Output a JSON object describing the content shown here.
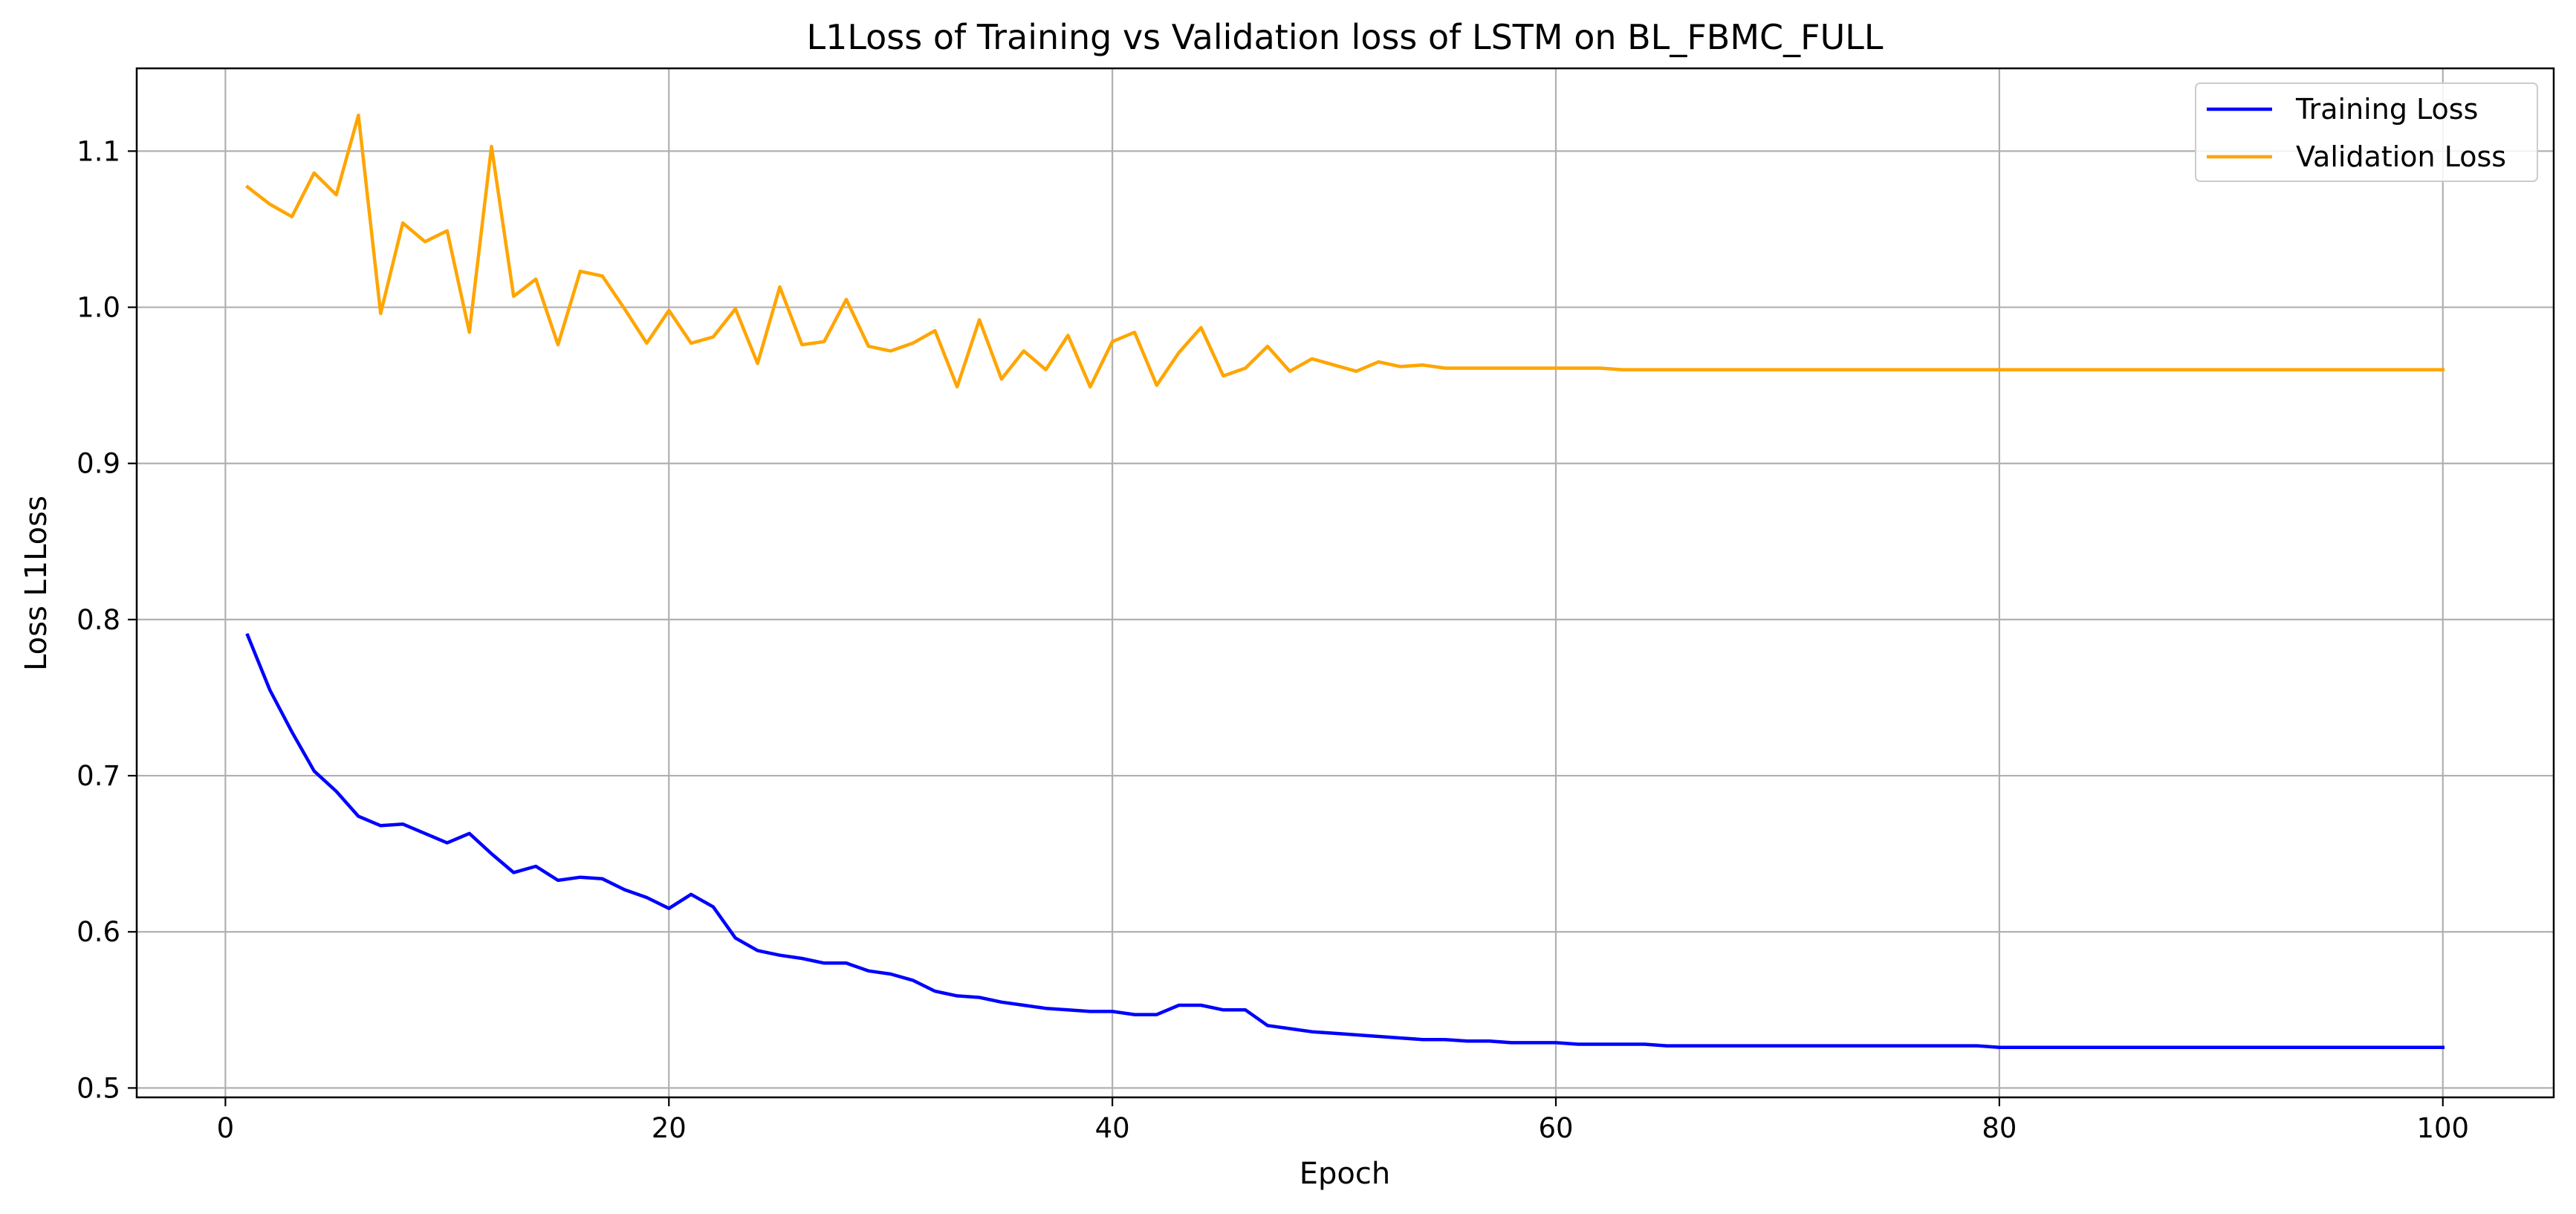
{
  "chart_data": {
    "type": "line",
    "title": "L1Loss of Training vs Validation loss of LSTM on BL_FBMC_FULL",
    "xlabel": "Epoch",
    "ylabel": "Loss L1Loss",
    "xlim": [
      -4,
      105
    ],
    "ylim": [
      0.494,
      1.153
    ],
    "xticks": [
      0,
      20,
      40,
      60,
      80,
      100
    ],
    "yticks": [
      0.5,
      0.6,
      0.7,
      0.8,
      0.9,
      1.0,
      1.1
    ],
    "xtick_labels": [
      "0",
      "20",
      "40",
      "60",
      "80",
      "100"
    ],
    "ytick_labels": [
      "0.5",
      "0.6",
      "0.7",
      "0.8",
      "0.9",
      "1.0",
      "1.1"
    ],
    "grid": true,
    "legend_position": "top-right",
    "x": [
      1,
      2,
      3,
      4,
      5,
      6,
      7,
      8,
      9,
      10,
      11,
      12,
      13,
      14,
      15,
      16,
      17,
      18,
      19,
      20,
      21,
      22,
      23,
      24,
      25,
      26,
      27,
      28,
      29,
      30,
      31,
      32,
      33,
      34,
      35,
      36,
      37,
      38,
      39,
      40,
      41,
      42,
      43,
      44,
      45,
      46,
      47,
      48,
      49,
      50,
      51,
      52,
      53,
      54,
      55,
      56,
      57,
      58,
      59,
      60,
      61,
      62,
      63,
      64,
      65,
      66,
      67,
      68,
      69,
      70,
      71,
      72,
      73,
      74,
      75,
      76,
      77,
      78,
      79,
      80,
      81,
      82,
      83,
      84,
      85,
      86,
      87,
      88,
      89,
      90,
      91,
      92,
      93,
      94,
      95,
      96,
      97,
      98,
      99,
      100
    ],
    "series": [
      {
        "name": "Training Loss",
        "color": "#0000ff",
        "values": [
          0.79,
          0.755,
          0.728,
          0.703,
          0.69,
          0.674,
          0.668,
          0.669,
          0.663,
          0.657,
          0.663,
          0.65,
          0.638,
          0.642,
          0.633,
          0.635,
          0.634,
          0.627,
          0.622,
          0.615,
          0.624,
          0.616,
          0.596,
          0.588,
          0.585,
          0.583,
          0.58,
          0.58,
          0.575,
          0.573,
          0.569,
          0.562,
          0.559,
          0.558,
          0.555,
          0.553,
          0.551,
          0.55,
          0.549,
          0.549,
          0.547,
          0.547,
          0.553,
          0.553,
          0.55,
          0.55,
          0.54,
          0.538,
          0.536,
          0.535,
          0.534,
          0.533,
          0.532,
          0.531,
          0.531,
          0.53,
          0.53,
          0.529,
          0.529,
          0.529,
          0.528,
          0.528,
          0.528,
          0.528,
          0.527,
          0.527,
          0.527,
          0.527,
          0.527,
          0.527,
          0.527,
          0.527,
          0.527,
          0.527,
          0.527,
          0.527,
          0.527,
          0.527,
          0.527,
          0.526,
          0.526,
          0.526,
          0.526,
          0.526,
          0.526,
          0.526,
          0.526,
          0.526,
          0.526,
          0.526,
          0.526,
          0.526,
          0.526,
          0.526,
          0.526,
          0.526,
          0.526,
          0.526,
          0.526,
          0.526
        ]
      },
      {
        "name": "Validation Loss",
        "color": "#ffa500",
        "values": [
          1.077,
          1.066,
          1.058,
          1.086,
          1.072,
          1.123,
          0.996,
          1.054,
          1.042,
          1.049,
          0.984,
          1.103,
          1.007,
          1.018,
          0.976,
          1.023,
          1.02,
          0.999,
          0.977,
          0.998,
          0.977,
          0.981,
          0.999,
          0.964,
          1.013,
          0.976,
          0.978,
          1.005,
          0.975,
          0.972,
          0.977,
          0.985,
          0.949,
          0.992,
          0.954,
          0.972,
          0.96,
          0.982,
          0.949,
          0.978,
          0.984,
          0.95,
          0.971,
          0.987,
          0.956,
          0.961,
          0.975,
          0.959,
          0.967,
          0.963,
          0.959,
          0.965,
          0.962,
          0.963,
          0.961,
          0.961,
          0.961,
          0.961,
          0.961,
          0.961,
          0.961,
          0.961,
          0.96,
          0.96,
          0.96,
          0.96,
          0.96,
          0.96,
          0.96,
          0.96,
          0.96,
          0.96,
          0.96,
          0.96,
          0.96,
          0.96,
          0.96,
          0.96,
          0.96,
          0.96,
          0.96,
          0.96,
          0.96,
          0.96,
          0.96,
          0.96,
          0.96,
          0.96,
          0.96,
          0.96,
          0.96,
          0.96,
          0.96,
          0.96,
          0.96,
          0.96,
          0.96,
          0.96,
          0.96,
          0.96
        ]
      }
    ]
  }
}
